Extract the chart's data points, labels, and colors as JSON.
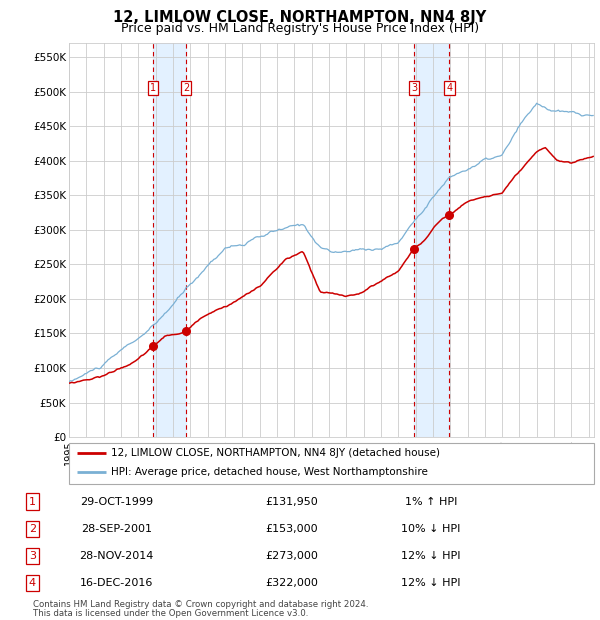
{
  "title": "12, LIMLOW CLOSE, NORTHAMPTON, NN4 8JY",
  "subtitle": "Price paid vs. HM Land Registry's House Price Index (HPI)",
  "title_fontsize": 10.5,
  "subtitle_fontsize": 9,
  "ylabel_ticks": [
    "£0",
    "£50K",
    "£100K",
    "£150K",
    "£200K",
    "£250K",
    "£300K",
    "£350K",
    "£400K",
    "£450K",
    "£500K",
    "£550K"
  ],
  "ytick_values": [
    0,
    50000,
    100000,
    150000,
    200000,
    250000,
    300000,
    350000,
    400000,
    450000,
    500000,
    550000
  ],
  "ylim": [
    0,
    570000
  ],
  "xlim_start": 1995.0,
  "xlim_end": 2025.3,
  "transactions": [
    {
      "num": 1,
      "date": "29-OCT-1999",
      "year": 1999.83,
      "price": 131950,
      "pct": "1%",
      "dir": "↑"
    },
    {
      "num": 2,
      "date": "28-SEP-2001",
      "year": 2001.75,
      "price": 153000,
      "pct": "10%",
      "dir": "↓"
    },
    {
      "num": 3,
      "date": "28-NOV-2014",
      "year": 2014.92,
      "price": 273000,
      "pct": "12%",
      "dir": "↓"
    },
    {
      "num": 4,
      "date": "16-DEC-2016",
      "year": 2016.96,
      "price": 322000,
      "pct": "12%",
      "dir": "↓"
    }
  ],
  "legend_line1": "12, LIMLOW CLOSE, NORTHAMPTON, NN4 8JY (detached house)",
  "legend_line2": "HPI: Average price, detached house, West Northamptonshire",
  "footer1": "Contains HM Land Registry data © Crown copyright and database right 2024.",
  "footer2": "This data is licensed under the Open Government Licence v3.0.",
  "red_color": "#cc0000",
  "blue_color": "#7ab0d4",
  "bg_shade": "#ddeeff",
  "grid_color": "#cccccc"
}
